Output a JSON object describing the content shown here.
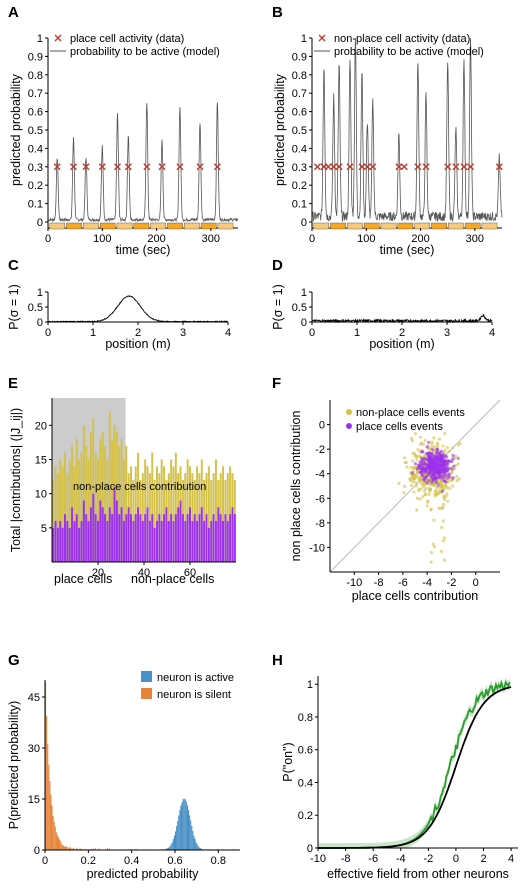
{
  "panel_labels": [
    "A",
    "B",
    "C",
    "D",
    "E",
    "F",
    "G",
    "H"
  ],
  "colors": {
    "marker": "#c0392b",
    "trace": "#555555",
    "orange": "#f5a623",
    "orange_hatch": "#f7c97a",
    "purple": "#9b30f0",
    "gold": "#d4c14a",
    "grey_shade": "#cccccc",
    "blue": "#4a90c8",
    "sigm_orange": "#e8843a",
    "green": "#2a9d2a"
  },
  "chart_data": [
    {
      "panel": "A",
      "type": "line",
      "ylabel": "predicted probability",
      "xlabel": "time (sec)",
      "xlim": [
        0,
        350
      ],
      "ylim": [
        0,
        1
      ],
      "xticks": [
        0,
        100,
        200,
        300
      ],
      "yticks": [
        0,
        0.1,
        0.2,
        0.3,
        0.4,
        0.5,
        0.6,
        0.7,
        0.8,
        0.9,
        1
      ],
      "ytick_labels": [
        "0",
        "0.1",
        "0.2",
        "0.3",
        "0.4",
        "0.5",
        "0.6",
        "0.7",
        "0.8",
        "0.9",
        "1"
      ],
      "legend": [
        "place cell activity (data)",
        "probability to be active (model)"
      ],
      "events_x": [
        17,
        47,
        70,
        100,
        128,
        148,
        182,
        210,
        243,
        280,
        312
      ],
      "events_y": 0.3,
      "peaks": [
        [
          17,
          0.34
        ],
        [
          47,
          0.45
        ],
        [
          70,
          0.34
        ],
        [
          100,
          0.4
        ],
        [
          128,
          0.58
        ],
        [
          148,
          0.46
        ],
        [
          182,
          0.64
        ],
        [
          210,
          0.43
        ],
        [
          243,
          0.62
        ],
        [
          280,
          0.53
        ],
        [
          312,
          0.64
        ]
      ]
    },
    {
      "panel": "B",
      "type": "line",
      "ylabel": "predicted probability",
      "xlabel": "time (sec)",
      "xlim": [
        0,
        350
      ],
      "ylim": [
        0,
        1
      ],
      "xticks": [
        0,
        100,
        200,
        300
      ],
      "yticks": [
        0,
        0.1,
        0.2,
        0.3,
        0.4,
        0.5,
        0.6,
        0.7,
        0.8,
        0.9,
        1
      ],
      "ytick_labels": [
        "0",
        "0.1",
        "0.2",
        "0.3",
        "0.4",
        "0.5",
        "0.6",
        "0.7",
        "0.8",
        "0.9",
        "1"
      ],
      "legend": [
        "non-place cell activity (data)",
        "probability to be active (model)"
      ],
      "events_x": [
        10,
        22,
        30,
        40,
        50,
        70,
        92,
        102,
        112,
        160,
        170,
        195,
        210,
        250,
        265,
        280,
        292,
        345
      ],
      "events_y": 0.3,
      "peaks": [
        [
          22,
          0.82
        ],
        [
          40,
          0.65
        ],
        [
          50,
          0.83
        ],
        [
          70,
          0.85
        ],
        [
          80,
          0.97
        ],
        [
          92,
          0.78
        ],
        [
          102,
          0.52
        ],
        [
          112,
          0.62
        ],
        [
          160,
          0.45
        ],
        [
          195,
          0.84
        ],
        [
          210,
          0.66
        ],
        [
          250,
          0.85
        ],
        [
          265,
          0.48
        ],
        [
          280,
          0.84
        ],
        [
          292,
          0.97
        ],
        [
          345,
          0.32
        ]
      ]
    },
    {
      "panel": "C",
      "type": "line",
      "ylabel": "P(σ = 1)",
      "xlabel": "position (m)",
      "xlim": [
        0,
        4
      ],
      "ylim": [
        0,
        1
      ],
      "xticks": [
        0,
        1,
        2,
        3,
        4
      ],
      "yticks": [
        0,
        0.5,
        1
      ],
      "ytick_labels": [
        "0",
        "0.5",
        "1"
      ],
      "peak": {
        "x": 1.8,
        "y": 0.85,
        "width": 0.25
      }
    },
    {
      "panel": "D",
      "type": "line",
      "ylabel": "P(σ = 1)",
      "xlabel": "position (m)",
      "xlim": [
        0,
        4
      ],
      "ylim": [
        0,
        1
      ],
      "xticks": [
        0,
        1,
        2,
        3,
        4
      ],
      "yticks": [
        0,
        0.5,
        1
      ],
      "ytick_labels": [
        "0",
        "0.5",
        "1"
      ],
      "baseline": 0.05,
      "bumps": [
        [
          3.8,
          0.18
        ]
      ]
    },
    {
      "panel": "E",
      "type": "bar",
      "ylabel": "Total |contributions| (|J_ij|)",
      "xlim": [
        0,
        80
      ],
      "ylim": [
        0,
        24
      ],
      "xticks": [
        20,
        40,
        60
      ],
      "yticks": [
        5,
        10,
        15,
        20
      ],
      "annotation": "non-place cells contribution",
      "group_labels": [
        "place cells",
        "non-place cells"
      ],
      "shade_x": [
        0,
        32
      ],
      "series": [
        {
          "component": "lower",
          "values": [
            5,
            6,
            5,
            6,
            5,
            7,
            6,
            5,
            8,
            6,
            7,
            5,
            6,
            9,
            7,
            6,
            8,
            10,
            7,
            6,
            9,
            8,
            7,
            6,
            8,
            7,
            11,
            9,
            7,
            8,
            6,
            7,
            8,
            7,
            6,
            7,
            8,
            7,
            6,
            7,
            8,
            6,
            7,
            5,
            6,
            7,
            6,
            7,
            8,
            6,
            7,
            6,
            7,
            8,
            9,
            7,
            6,
            7,
            8,
            6,
            7,
            6,
            7,
            8,
            6,
            7,
            5,
            6,
            7,
            6,
            8,
            7,
            6,
            7,
            6,
            7,
            8,
            7
          ]
        },
        {
          "component": "upper",
          "values": [
            12,
            14,
            13,
            15,
            14,
            16,
            13,
            15,
            17,
            14,
            18,
            15,
            16,
            20,
            17,
            15,
            19,
            21,
            16,
            15,
            18,
            19,
            17,
            15,
            22,
            18,
            20,
            19,
            17,
            18,
            15,
            17,
            13,
            14,
            12,
            14,
            16,
            12,
            13,
            15,
            14,
            13,
            16,
            12,
            14,
            13,
            15,
            14,
            12,
            13,
            15,
            14,
            16,
            13,
            14,
            12,
            13,
            15,
            14,
            13,
            12,
            14,
            13,
            15,
            12,
            13,
            14,
            12,
            13,
            15,
            12,
            13,
            14,
            12,
            13,
            14,
            13,
            12
          ]
        }
      ]
    },
    {
      "panel": "F",
      "type": "scatter",
      "xlabel": "place cells contribution",
      "ylabel": "non place cells contribution",
      "xlim": [
        -12,
        2
      ],
      "ylim": [
        -12,
        2
      ],
      "xticks": [
        -10,
        -8,
        -6,
        -4,
        -2,
        0
      ],
      "yticks": [
        -10,
        -8,
        -6,
        -4,
        -2,
        0
      ],
      "legend": [
        "non-place cells events",
        "place cells events"
      ],
      "clusters": [
        {
          "series": "non-place cells events",
          "center": [
            -3.6,
            -3.8
          ],
          "sd": [
            0.9,
            1.1
          ],
          "n": 450
        },
        {
          "series": "place cells events",
          "center": [
            -3.3,
            -3.4
          ],
          "sd": [
            0.6,
            0.6
          ],
          "n": 320
        }
      ]
    },
    {
      "panel": "G",
      "type": "bar",
      "xlabel": "predicted probability",
      "ylabel": "P(predicted probability)",
      "xlim": [
        0,
        0.9
      ],
      "ylim": [
        0,
        50
      ],
      "xticks": [
        0,
        0.2,
        0.4,
        0.6,
        0.8
      ],
      "xtick_labels": [
        "0",
        "0.2",
        "0.4",
        "0.6",
        "0.8"
      ],
      "yticks": [
        0,
        15,
        30,
        45
      ],
      "legend": [
        "neuron is active",
        "neuron is silent"
      ],
      "silent_peak": {
        "x": 0.01,
        "y": 49
      },
      "active_peak": {
        "x": 0.64,
        "y": 15
      }
    },
    {
      "panel": "H",
      "type": "line",
      "xlabel": "effective field from other neurons",
      "ylabel": "P(\"on\")",
      "xlim": [
        -10,
        4.5
      ],
      "ylim": [
        0,
        1.05
      ],
      "xticks": [
        -10,
        -8,
        -6,
        -4,
        -2,
        0,
        2,
        4
      ],
      "yticks": [
        0,
        0.2,
        0.4,
        0.6,
        0.8,
        1
      ],
      "ytick_labels": [
        "0",
        "0.2",
        "0.4",
        "0.6",
        "0.8",
        "1"
      ],
      "series": [
        {
          "name": "",
          "style": "sigmoid",
          "center": 0,
          "slope": 1
        }
      ]
    }
  ]
}
